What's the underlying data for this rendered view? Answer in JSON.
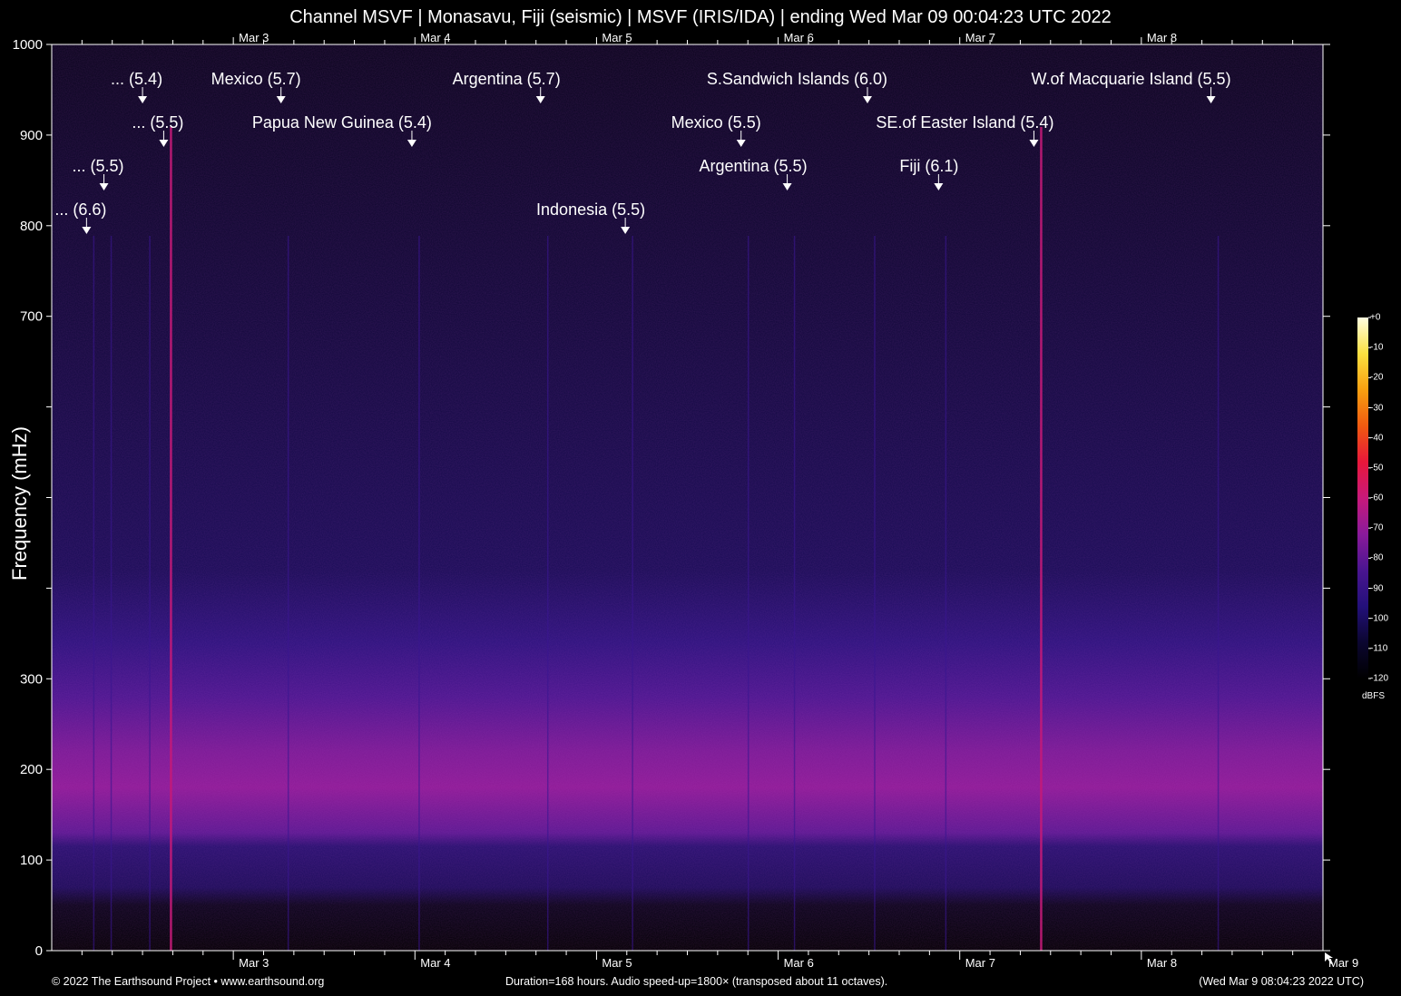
{
  "header": {
    "title": "Channel MSVF | Monasavu, Fiji (seismic) | MSVF (IRIS/IDA) | ending Wed Mar 09 00:04:23 UTC 2022"
  },
  "footer": {
    "copyright": "© 2022 The Earthsound Project • www.earthsound.org",
    "duration": "Duration=168 hours. Audio speed-up=1800× (transposed about 11 octaves).",
    "local_time": "(Wed Mar  9 08:04:23 2022 UTC)"
  },
  "colorbar": {
    "unit": "dBFS",
    "ticks": [
      "+0",
      "-10",
      "-20",
      "-30",
      "-40",
      "-50",
      "-60",
      "-70",
      "-80",
      "-90",
      "-100",
      "-110",
      "-120"
    ]
  },
  "chart_data": {
    "type": "heatmap",
    "title": "Channel MSVF | Monasavu, Fiji (seismic) | MSVF (IRIS/IDA) | ending Wed Mar 09 00:04:23 UTC 2022",
    "xlabel": "",
    "ylabel": "Frequency (mHz)",
    "ylim": [
      0,
      1000
    ],
    "y_ticks": [
      0,
      100,
      200,
      300,
      700,
      800,
      900,
      1000
    ],
    "xlim_hours": [
      0,
      168
    ],
    "x_ticks": [
      {
        "label": "Mar 3",
        "hour": 24
      },
      {
        "label": "Mar 4",
        "hour": 48
      },
      {
        "label": "Mar 5",
        "hour": 72
      },
      {
        "label": "Mar 6",
        "hour": 96
      },
      {
        "label": "Mar 7",
        "hour": 120
      },
      {
        "label": "Mar 8",
        "hour": 144
      },
      {
        "label": "Mar 9",
        "hour": 168
      }
    ],
    "colormap": [
      "#000000",
      "#0b0630",
      "#23107a",
      "#4a1590",
      "#8a1a9a",
      "#c8197a",
      "#e8173a",
      "#f05a10",
      "#f8a010",
      "#fbe040",
      "#fffde0"
    ],
    "color_range_dbfs": [
      -120,
      0
    ],
    "events": [
      {
        "label": "... (6.6)",
        "hour": 4.6,
        "row": 4
      },
      {
        "label": "... (5.5)",
        "hour": 6.9,
        "row": 3
      },
      {
        "label": "... (5.4)",
        "hour": 12.0,
        "row": 1
      },
      {
        "label": "... (5.5)",
        "hour": 14.8,
        "row": 2
      },
      {
        "label": "Mexico (5.7)",
        "hour": 30.3,
        "row": 1
      },
      {
        "label": "Papua New Guinea (5.4)",
        "hour": 47.6,
        "row": 2
      },
      {
        "label": "Argentina (5.7)",
        "hour": 64.6,
        "row": 1
      },
      {
        "label": "Indonesia (5.5)",
        "hour": 75.8,
        "row": 4
      },
      {
        "label": "Mexico (5.5)",
        "hour": 91.1,
        "row": 2
      },
      {
        "label": "Argentina (5.5)",
        "hour": 97.2,
        "row": 3
      },
      {
        "label": "S.Sandwich Islands (6.0)",
        "hour": 107.8,
        "row": 1
      },
      {
        "label": "Fiji (6.1)",
        "hour": 117.2,
        "row": 3
      },
      {
        "label": "SE.of Easter Island (5.4)",
        "hour": 129.8,
        "row": 2
      },
      {
        "label": "W.of Macquarie Island (5.5)",
        "hour": 153.2,
        "row": 1
      }
    ]
  }
}
